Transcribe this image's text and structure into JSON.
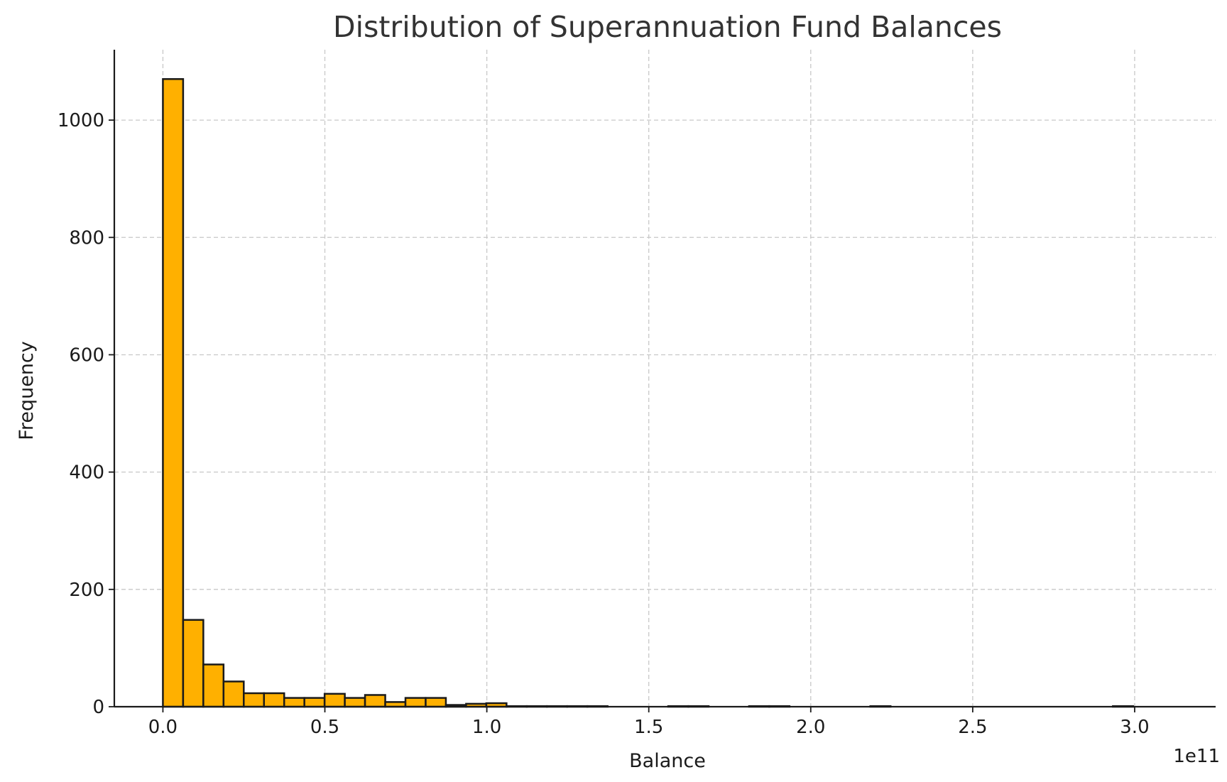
{
  "chart_data": {
    "type": "bar",
    "title": "Distribution of Superannuation Fund Balances",
    "xlabel": "Balance",
    "ylabel": "Frequency",
    "x_offset_text": "1e11",
    "bar_color": "#FFB000",
    "edge_color": "#1a1a1a",
    "grid": true,
    "xlim": [
      -0.15,
      3.25
    ],
    "ylim": [
      0,
      1120
    ],
    "x_ticks": [
      0.0,
      0.5,
      1.0,
      1.5,
      2.0,
      2.5,
      3.0
    ],
    "x_tick_labels": [
      "0.0",
      "0.5",
      "1.0",
      "1.5",
      "2.0",
      "2.5",
      "3.0"
    ],
    "y_ticks": [
      0,
      200,
      400,
      600,
      800,
      1000
    ],
    "y_tick_labels": [
      "0",
      "200",
      "400",
      "600",
      "800",
      "1000"
    ],
    "bin_start": 0.0,
    "bin_width": 0.0624,
    "values": [
      1070,
      148,
      72,
      43,
      23,
      23,
      15,
      15,
      22,
      15,
      20,
      8,
      15,
      15,
      3,
      5,
      6,
      1,
      1,
      1,
      1,
      1,
      0,
      0,
      0,
      1,
      1,
      0,
      0,
      1,
      1,
      0,
      0,
      0,
      0,
      1,
      0,
      0,
      0,
      0,
      0,
      0,
      0,
      0,
      0,
      0,
      0,
      1,
      0,
      0
    ]
  }
}
